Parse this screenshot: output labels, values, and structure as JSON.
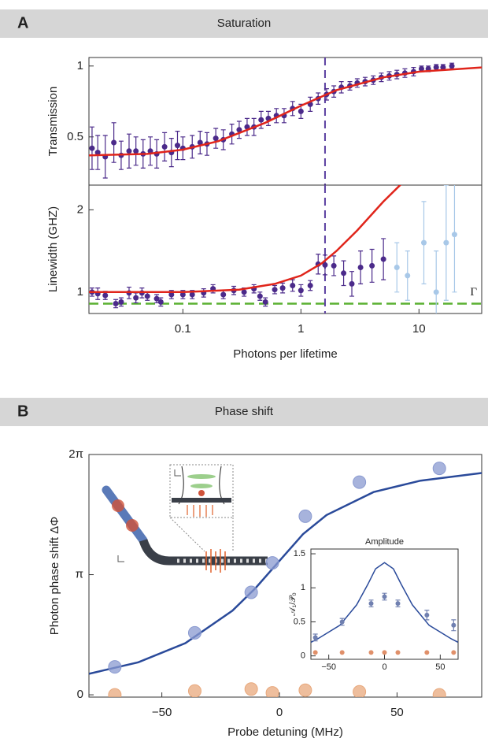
{
  "panels": [
    {
      "label": "A",
      "title": "Saturation"
    },
    {
      "label": "B",
      "title": "Phase shift"
    }
  ],
  "chart_data": [
    {
      "type": "scatter",
      "xscale": "log",
      "xlim": [
        0.016,
        34
      ],
      "ylim": [
        0.16,
        1.06
      ],
      "yticks": [
        0.5,
        1
      ],
      "ylabel": "Transmission",
      "vline": 1.6,
      "vline_color": "#5b3fa0",
      "series": [
        {
          "kind": "points",
          "color": "#4b2a8a",
          "x": [
            0.017,
            0.019,
            0.022,
            0.026,
            0.03,
            0.035,
            0.04,
            0.046,
            0.053,
            0.06,
            0.07,
            0.08,
            0.09,
            0.1,
            0.12,
            0.14,
            0.16,
            0.19,
            0.22,
            0.26,
            0.3,
            0.35,
            0.4,
            0.46,
            0.53,
            0.62,
            0.72,
            0.85,
            1.0,
            1.2,
            1.4,
            1.65,
            1.9,
            2.2,
            2.6,
            3.0,
            3.5,
            4.1,
            4.8,
            5.6,
            6.5,
            7.6,
            9,
            10.5,
            12,
            14,
            16,
            19
          ],
          "values": [
            0.42,
            0.39,
            0.36,
            0.46,
            0.37,
            0.4,
            0.4,
            0.38,
            0.4,
            0.38,
            0.43,
            0.39,
            0.44,
            0.42,
            0.43,
            0.46,
            0.45,
            0.49,
            0.48,
            0.52,
            0.55,
            0.57,
            0.57,
            0.62,
            0.63,
            0.65,
            0.65,
            0.7,
            0.68,
            0.73,
            0.77,
            0.8,
            0.82,
            0.85,
            0.86,
            0.88,
            0.89,
            0.9,
            0.92,
            0.93,
            0.94,
            0.95,
            0.96,
            0.98,
            0.98,
            0.99,
            0.99,
            1.0
          ],
          "errors": [
            0.15,
            0.12,
            0.15,
            0.14,
            0.1,
            0.12,
            0.1,
            0.1,
            0.1,
            0.1,
            0.1,
            0.1,
            0.1,
            0.08,
            0.08,
            0.08,
            0.08,
            0.07,
            0.07,
            0.07,
            0.06,
            0.06,
            0.06,
            0.06,
            0.05,
            0.05,
            0.05,
            0.05,
            0.05,
            0.05,
            0.04,
            0.04,
            0.04,
            0.04,
            0.03,
            0.03,
            0.03,
            0.03,
            0.03,
            0.03,
            0.03,
            0.03,
            0.03,
            0.02,
            0.02,
            0.02,
            0.02,
            0.02
          ]
        },
        {
          "kind": "line",
          "color": "#e0251b",
          "x": [
            0.016,
            0.05,
            0.1,
            0.2,
            0.5,
            1,
            2,
            5,
            10,
            34
          ],
          "values": [
            0.37,
            0.38,
            0.41,
            0.47,
            0.6,
            0.72,
            0.83,
            0.92,
            0.96,
            0.99
          ]
        }
      ]
    },
    {
      "type": "scatter",
      "xscale": "log",
      "xlim": [
        0.016,
        34
      ],
      "xticks": [
        0.1,
        1,
        10
      ],
      "ylim": [
        0.74,
        2.3
      ],
      "yticks": [
        1,
        2
      ],
      "xlabel": "Photons per lifetime",
      "ylabel": "Linewidth (GHZ)",
      "vline": 1.6,
      "vline_color": "#5b3fa0",
      "hline": 0.86,
      "hline_color": "#5ab030",
      "hline_label": "Γ",
      "series": [
        {
          "kind": "points",
          "color": "#4b2a8a",
          "x": [
            0.017,
            0.019,
            0.022,
            0.027,
            0.03,
            0.035,
            0.04,
            0.045,
            0.05,
            0.06,
            0.065,
            0.08,
            0.1,
            0.12,
            0.15,
            0.18,
            0.22,
            0.27,
            0.33,
            0.4,
            0.45,
            0.5,
            0.6,
            0.7,
            0.85,
            1.0,
            1.2,
            1.4,
            1.6,
            1.9,
            2.3,
            2.7,
            3.2,
            4,
            5
          ],
          "values": [
            1.0,
            0.98,
            0.96,
            0.86,
            0.88,
            0.99,
            0.93,
            0.99,
            0.95,
            0.92,
            0.88,
            0.97,
            0.97,
            0.97,
            0.99,
            1.04,
            0.97,
            1.02,
            1.0,
            1.04,
            0.95,
            0.88,
            1.03,
            1.05,
            1.08,
            1.02,
            1.08,
            1.34,
            1.33,
            1.32,
            1.23,
            1.1,
            1.3,
            1.32,
            1.4
          ],
          "errors": [
            0.05,
            0.07,
            0.05,
            0.05,
            0.05,
            0.07,
            0.06,
            0.06,
            0.05,
            0.05,
            0.05,
            0.05,
            0.05,
            0.05,
            0.05,
            0.05,
            0.05,
            0.05,
            0.05,
            0.05,
            0.05,
            0.05,
            0.05,
            0.06,
            0.07,
            0.07,
            0.06,
            0.12,
            0.12,
            0.12,
            0.15,
            0.15,
            0.2,
            0.2,
            0.25
          ]
        },
        {
          "kind": "points",
          "color": "#a8c8e8",
          "x": [
            6.5,
            8,
            11,
            14,
            17,
            20
          ],
          "values": [
            1.3,
            1.2,
            1.6,
            1.0,
            1.6,
            1.7
          ],
          "errors": [
            0.3,
            0.3,
            0.5,
            0.5,
            0.7,
            0.7
          ]
        },
        {
          "kind": "line",
          "color": "#e0251b",
          "x": [
            0.016,
            0.1,
            0.3,
            0.6,
            1,
            1.5,
            2,
            3,
            5,
            7.5
          ],
          "values": [
            1.0,
            1.0,
            1.03,
            1.1,
            1.2,
            1.35,
            1.5,
            1.75,
            2.1,
            2.35
          ]
        }
      ]
    },
    {
      "type": "scatter",
      "xlim": [
        -81,
        86
      ],
      "xticks": [
        {
          "value": -50,
          "label": "−50"
        },
        0,
        50
      ],
      "ylim": [
        -0.06,
        6.2832
      ],
      "yticks": [
        0,
        {
          "value": 3.1416,
          "label": "π"
        },
        {
          "value": 6.2832,
          "label": "2π"
        }
      ],
      "xlabel": "Probe detuning (MHz)",
      "ylabel": "Photon phase shift ΔΦ",
      "series": [
        {
          "kind": "line",
          "color": "#2a4a9a",
          "x": [
            -81,
            -60,
            -40,
            -20,
            -10,
            0,
            10,
            20,
            40,
            60,
            86
          ],
          "values": [
            0.55,
            0.85,
            1.35,
            2.2,
            2.8,
            3.5,
            4.2,
            4.7,
            5.3,
            5.6,
            5.8
          ]
        },
        {
          "kind": "points",
          "color": "#8a9ad0",
          "x": [
            -70,
            -36,
            -12,
            -3,
            11,
            34,
            68
          ],
          "values": [
            0.73,
            1.62,
            2.68,
            3.45,
            4.67,
            5.56,
            5.92
          ]
        },
        {
          "kind": "points",
          "color": "#e8a87c",
          "x": [
            -70,
            -36,
            -12,
            -3,
            11,
            34,
            68
          ],
          "values": [
            0.0,
            0.1,
            0.15,
            0.05,
            0.12,
            0.08,
            0.0
          ]
        }
      ]
    },
    {
      "type": "scatter",
      "title": "Amplitude",
      "xlim": [
        -66,
        66
      ],
      "xticks": [
        {
          "value": -50,
          "label": "−50"
        },
        0,
        50
      ],
      "ylim": [
        -0.05,
        1.57
      ],
      "yticks": [
        0,
        0.5,
        1,
        1.5
      ],
      "ylabel": "𝒜₁/𝒫₀",
      "series": [
        {
          "kind": "line",
          "color": "#2a4a9a",
          "x": [
            -66,
            -60,
            -40,
            -25,
            -15,
            -8,
            0,
            8,
            15,
            25,
            40,
            60,
            66
          ],
          "values": [
            0.2,
            0.25,
            0.45,
            0.75,
            1.05,
            1.28,
            1.37,
            1.28,
            1.05,
            0.75,
            0.45,
            0.25,
            0.2
          ]
        },
        {
          "kind": "points",
          "color": "#7080b0",
          "x": [
            -62,
            -38,
            -12,
            0,
            12,
            38,
            62
          ],
          "values": [
            0.27,
            0.5,
            0.77,
            0.87,
            0.77,
            0.6,
            0.45
          ],
          "errors": [
            0.05,
            0.05,
            0.05,
            0.05,
            0.05,
            0.07,
            0.08
          ]
        },
        {
          "kind": "points",
          "color": "#e0906a",
          "x": [
            -62,
            -38,
            -12,
            0,
            12,
            38,
            62
          ],
          "values": [
            0.05,
            0.05,
            0.05,
            0.05,
            0.05,
            0.05,
            0.05
          ]
        }
      ]
    }
  ]
}
